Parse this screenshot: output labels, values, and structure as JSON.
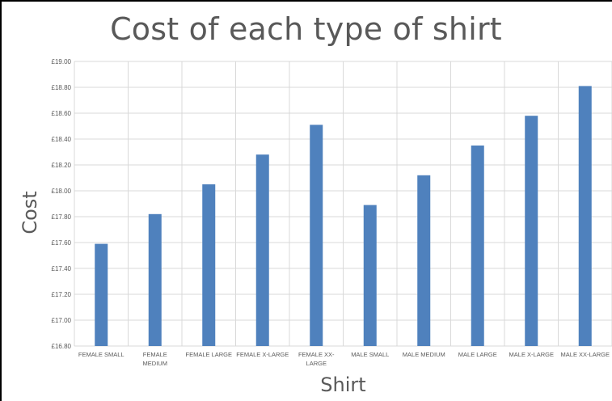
{
  "chart_data": {
    "type": "bar",
    "title": "Cost of each type of shirt",
    "xlabel": "Shirt",
    "ylabel": "Cost",
    "categories": [
      [
        "FEMALE SMALL"
      ],
      [
        "FEMALE",
        "MEDIUM"
      ],
      [
        "FEMALE LARGE"
      ],
      [
        "FEMALE X-LARGE"
      ],
      [
        "FEMALE XX-",
        "LARGE"
      ],
      [
        "MALE SMALL"
      ],
      [
        "MALE MEDIUM"
      ],
      [
        "MALE LARGE"
      ],
      [
        "MALE X-LARGE"
      ],
      [
        "MALE XX-LARGE"
      ]
    ],
    "values": [
      17.59,
      17.82,
      18.05,
      18.28,
      18.51,
      17.89,
      18.12,
      18.35,
      18.58,
      18.81
    ],
    "ylim": [
      16.8,
      19.0
    ],
    "yticks": [
      "£16.80",
      "£17.00",
      "£17.20",
      "£17.40",
      "£17.60",
      "£17.80",
      "£18.00",
      "£18.20",
      "£18.40",
      "£18.60",
      "£18.80",
      "£19.00"
    ],
    "grid": true,
    "legend": "none",
    "bar_color": "#4f81bd",
    "grid_color": "#d9d9d9"
  }
}
